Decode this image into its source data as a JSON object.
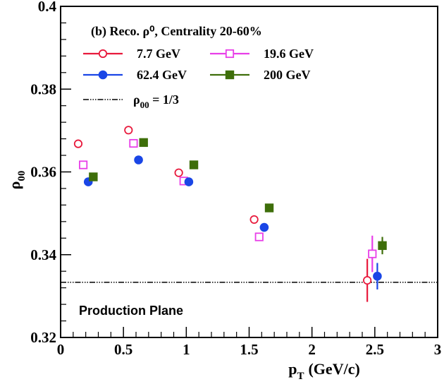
{
  "chart_data": {
    "type": "scatter",
    "title": "",
    "xlabel": "p",
    "xlabel_sub": "T",
    "xlabel_unit": "(GeV/c)",
    "ylabel": "ρ",
    "ylabel_sub": "00",
    "xlim": [
      0,
      3
    ],
    "ylim": [
      0.32,
      0.4
    ],
    "x_ticks": [
      0,
      0.5,
      1,
      1.5,
      2,
      2.5,
      3
    ],
    "x_tick_labels": [
      "0",
      "0.5",
      "1",
      "1.5",
      "2",
      "2.5",
      "3"
    ],
    "y_ticks": [
      0.32,
      0.34,
      0.36,
      0.38,
      0.4
    ],
    "y_tick_labels": [
      "0.32",
      "0.34",
      "0.36",
      "0.38",
      "0.4"
    ],
    "grid": false,
    "legend_title": "(b) Reco. ρ⁰, Centrality 20-60%",
    "legend_placement": "top-left",
    "series": [
      {
        "name": "7.7 GeV",
        "color": "#e8193c",
        "marker": "open-circle",
        "x": [
          0.14,
          0.54,
          0.94,
          1.54,
          2.44
        ],
        "y": [
          0.3668,
          0.3701,
          0.3598,
          0.3485,
          0.3338
        ],
        "err": [
          0.0006,
          0.0006,
          0.0006,
          0.0008,
          0.0052
        ]
      },
      {
        "name": "19.6 GeV",
        "color": "#e83ee8",
        "marker": "open-square",
        "x": [
          0.18,
          0.58,
          0.98,
          1.58,
          2.48
        ],
        "y": [
          0.3617,
          0.3669,
          0.3578,
          0.3443,
          0.3402
        ],
        "err": [
          0.0005,
          0.0005,
          0.0005,
          0.0006,
          0.0044
        ]
      },
      {
        "name": "62.4 GeV",
        "color": "#1a46e6",
        "marker": "filled-circle",
        "x": [
          0.22,
          0.62,
          1.02,
          1.62,
          2.52
        ],
        "y": [
          0.3576,
          0.3629,
          0.3576,
          0.3466,
          0.3348
        ],
        "err": [
          0.0004,
          0.0004,
          0.0004,
          0.0005,
          0.0032
        ]
      },
      {
        "name": "200 GeV",
        "color": "#3e6e0a",
        "marker": "filled-square",
        "x": [
          0.26,
          0.66,
          1.06,
          1.66,
          2.56
        ],
        "y": [
          0.3588,
          0.3671,
          0.3617,
          0.3513,
          0.3422
        ],
        "err": [
          0.0003,
          0.0003,
          0.0003,
          0.0004,
          0.0021
        ]
      }
    ],
    "reference_line": {
      "y": 0.33333,
      "style": "dash-dot-dot",
      "color": "#000000",
      "label": "ρ",
      "label_sub": "00",
      "label_tail": " = 1/3"
    },
    "annotations": [
      {
        "text": "Production Plane"
      }
    ]
  }
}
